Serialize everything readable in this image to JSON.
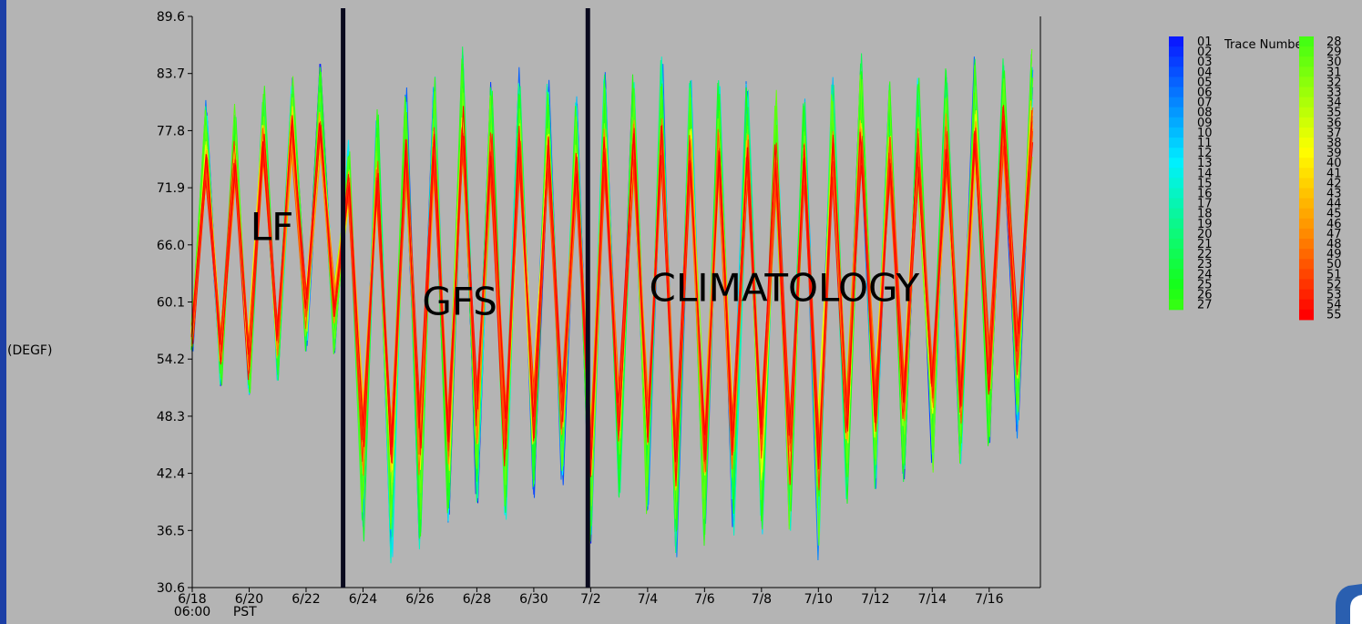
{
  "chart_data": {
    "type": "line",
    "ylabel": "(DEGF)",
    "yticks": [
      "89.6",
      "83.7",
      "77.8",
      "71.9",
      "66.0",
      "60.1",
      "54.2",
      "48.3",
      "42.4",
      "36.5",
      "30.6"
    ],
    "ylim": [
      30.6,
      89.6
    ],
    "xticks": [
      {
        "label": "6/18",
        "day": 0
      },
      {
        "label": "6/20",
        "day": 2
      },
      {
        "label": "6/22",
        "day": 4
      },
      {
        "label": "6/24",
        "day": 6
      },
      {
        "label": "6/26",
        "day": 8
      },
      {
        "label": "6/28",
        "day": 10
      },
      {
        "label": "6/30",
        "day": 12
      },
      {
        "label": "7/2",
        "day": 14
      },
      {
        "label": "7/4",
        "day": 16
      },
      {
        "label": "7/6",
        "day": 18
      },
      {
        "label": "7/8",
        "day": 20
      },
      {
        "label": "7/10",
        "day": 22
      },
      {
        "label": "7/12",
        "day": 24
      },
      {
        "label": "7/14",
        "day": 26
      },
      {
        "label": "7/16",
        "day": 28
      }
    ],
    "xlim": [
      0,
      29.8
    ],
    "x_start_label": "06:00",
    "timezone_label": "PST",
    "grid": false,
    "dividers": [
      5.3,
      13.9
    ],
    "regions": [
      {
        "label": "LF",
        "x": 2.8,
        "y": 66.5
      },
      {
        "label": "GFS",
        "x": 9.4,
        "y": 58.8
      },
      {
        "label": "CLIMATOLOGY",
        "x": 20.8,
        "y": 60.2
      }
    ],
    "envelope": {
      "x": [
        0,
        0.5,
        1,
        1.5,
        2,
        2.5,
        3,
        3.5,
        4,
        4.5,
        5,
        5.5,
        6,
        6.5,
        7,
        7.5,
        8,
        8.5,
        9,
        9.5,
        10,
        10.5,
        11,
        11.5,
        12,
        12.5,
        13,
        13.5,
        14,
        14.5,
        15,
        15.5,
        16,
        16.5,
        17,
        17.5,
        18,
        18.5,
        19,
        19.5,
        20,
        20.5,
        21,
        21.5,
        22,
        22.5,
        23,
        23.5,
        24,
        24.5,
        25,
        25.5,
        26,
        26.5,
        27,
        27.5,
        28,
        28.5,
        29,
        29.5
      ],
      "upper": [
        62,
        81,
        66,
        81,
        67,
        83,
        66,
        84,
        68,
        85,
        72,
        77,
        78,
        80,
        74,
        83,
        76,
        85,
        72,
        88,
        74,
        84,
        72,
        85,
        74,
        84,
        70,
        82,
        72,
        85,
        73,
        85,
        74,
        86,
        72,
        84,
        73,
        84,
        72,
        84,
        72,
        82,
        71,
        82,
        72,
        84,
        72,
        86,
        73,
        84,
        72,
        84,
        73,
        85,
        72,
        86,
        74,
        87,
        74,
        88
      ],
      "lower": [
        55,
        60,
        51,
        59,
        49,
        60,
        52,
        61,
        55,
        60,
        54,
        60,
        33,
        55,
        32,
        55,
        33,
        55,
        35,
        55,
        38,
        55,
        36,
        55,
        38,
        55,
        40,
        55,
        34,
        55,
        38,
        55,
        36,
        55,
        32,
        55,
        33,
        55,
        35,
        55,
        34,
        55,
        34,
        55,
        33,
        55,
        38,
        55,
        40,
        55,
        40,
        55,
        42,
        55,
        42,
        55,
        44,
        55,
        46,
        55
      ]
    },
    "series": [
      {
        "name": "01"
      },
      {
        "name": "02"
      },
      {
        "name": "03"
      },
      {
        "name": "04"
      },
      {
        "name": "05"
      },
      {
        "name": "06"
      },
      {
        "name": "07"
      },
      {
        "name": "08"
      },
      {
        "name": "09"
      },
      {
        "name": "10"
      },
      {
        "name": "11"
      },
      {
        "name": "12"
      },
      {
        "name": "13"
      },
      {
        "name": "14"
      },
      {
        "name": "15"
      },
      {
        "name": "16"
      },
      {
        "name": "17"
      },
      {
        "name": "18"
      },
      {
        "name": "19"
      },
      {
        "name": "20"
      },
      {
        "name": "21"
      },
      {
        "name": "22"
      },
      {
        "name": "23"
      },
      {
        "name": "24"
      },
      {
        "name": "25"
      },
      {
        "name": "26"
      },
      {
        "name": "27"
      },
      {
        "name": "28"
      },
      {
        "name": "29"
      },
      {
        "name": "30"
      },
      {
        "name": "31"
      },
      {
        "name": "32"
      },
      {
        "name": "33"
      },
      {
        "name": "34"
      },
      {
        "name": "35"
      },
      {
        "name": "36"
      },
      {
        "name": "37"
      },
      {
        "name": "38"
      },
      {
        "name": "39"
      },
      {
        "name": "40"
      },
      {
        "name": "41"
      },
      {
        "name": "42"
      },
      {
        "name": "43"
      },
      {
        "name": "44"
      },
      {
        "name": "45"
      },
      {
        "name": "46"
      },
      {
        "name": "47"
      },
      {
        "name": "48"
      },
      {
        "name": "49"
      },
      {
        "name": "50"
      },
      {
        "name": "51"
      },
      {
        "name": "52"
      },
      {
        "name": "53"
      },
      {
        "name": "54"
      },
      {
        "name": "55"
      }
    ],
    "legend": {
      "title": "Trace Number",
      "placement": "right",
      "colors": {
        "blue": "#0a1aff",
        "cyan": "#00f0ff",
        "green": "#16ff16",
        "yellow": "#ffff00",
        "orange": "#ff8c00",
        "red": "#ff0000"
      }
    }
  },
  "theme": {
    "background": "#b4b4b4",
    "page_edge": "#1c3fa6",
    "axis": "#000000",
    "divider": "#0a0a1e"
  }
}
